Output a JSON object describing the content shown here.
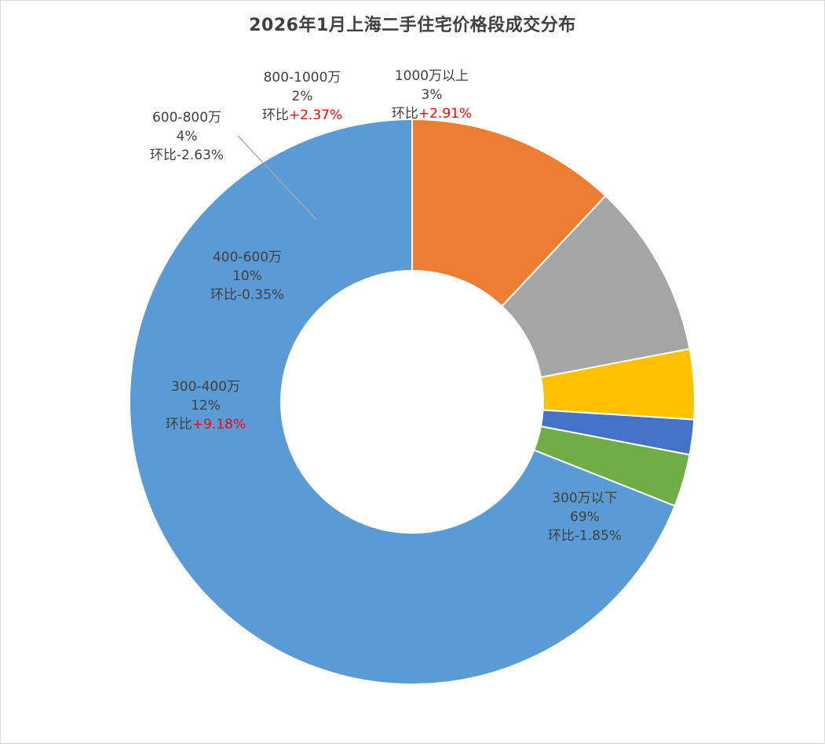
{
  "chart_data": {
    "type": "pie",
    "variant": "donut",
    "title": "2026年1月上海二手住宅价格段成交分布",
    "legend": "none",
    "colors": {
      "s300_below": "#5b9bd5",
      "s300_400": "#ed7d31",
      "s400_600": "#a5a5a5",
      "s600_800": "#ffc000",
      "s800_1000": "#4472c4",
      "s1000_above": "#70ad47"
    },
    "slices": [
      {
        "name": "300万以下",
        "value": 69,
        "percent_label": "69%",
        "mom_prefix": "环比",
        "mom": "-1.85%",
        "mom_positive": false,
        "color": "#5b9bd5"
      },
      {
        "name": "300-400万",
        "value": 12,
        "percent_label": "12%",
        "mom_prefix": "环比",
        "mom": "+9.18%",
        "mom_positive": true,
        "color": "#ed7d31"
      },
      {
        "name": "400-600万",
        "value": 10,
        "percent_label": "10%",
        "mom_prefix": "环比",
        "mom": "-0.35%",
        "mom_positive": false,
        "color": "#a5a5a5"
      },
      {
        "name": "600-800万",
        "value": 4,
        "percent_label": "4%",
        "mom_prefix": "环比",
        "mom": "-2.63%",
        "mom_positive": false,
        "color": "#ffc000"
      },
      {
        "name": "800-1000万",
        "value": 2,
        "percent_label": "2%",
        "mom_prefix": "环比",
        "mom": "+2.37%",
        "mom_positive": true,
        "color": "#4472c4"
      },
      {
        "name": "1000万以上",
        "value": 3,
        "percent_label": "3%",
        "mom_prefix": "环比",
        "mom": "+2.91%",
        "mom_positive": true,
        "color": "#70ad47"
      }
    ]
  }
}
